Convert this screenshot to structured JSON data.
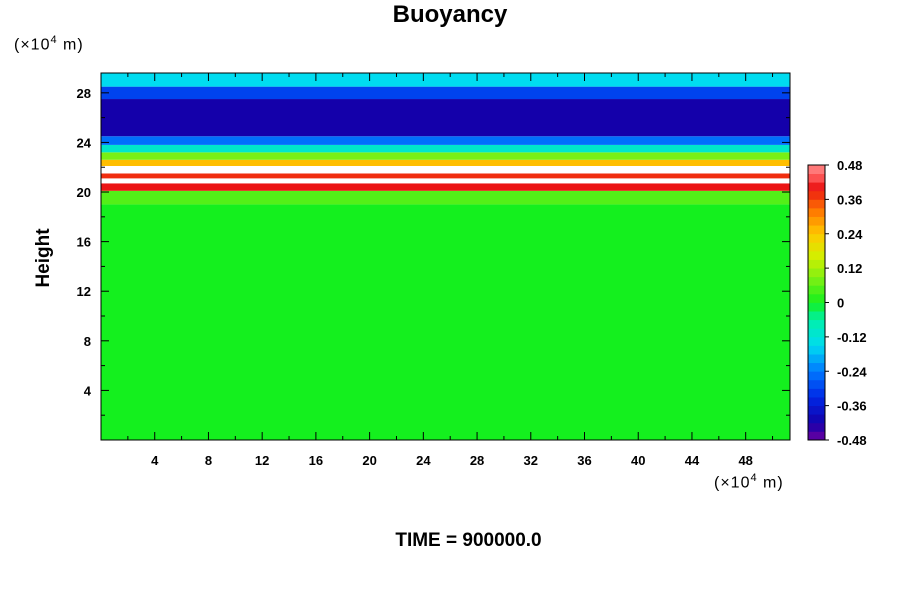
{
  "chart_data": {
    "type": "heatmap",
    "title": "Buoyancy",
    "ylabel": "Height",
    "x_unit": {
      "prefix": "(×10",
      "exp": "4",
      "suffix": " m)"
    },
    "y_unit": {
      "prefix": "(×10",
      "exp": "4",
      "suffix": " m)"
    },
    "xlim": [
      0,
      51.3
    ],
    "ylim": [
      0,
      29.6
    ],
    "x_ticks": [
      4,
      8,
      12,
      16,
      20,
      24,
      28,
      32,
      36,
      40,
      44,
      48
    ],
    "y_ticks": [
      4,
      8,
      12,
      16,
      20,
      24,
      28
    ],
    "colorbar": {
      "range": [
        -0.48,
        0.48
      ],
      "levels": 32,
      "tick_labels": [
        "0.48",
        "0.36",
        "0.24",
        "0.12",
        "0",
        "-0.12",
        "-0.24",
        "-0.36",
        "-0.48"
      ]
    },
    "bands": [
      {
        "y": [
          0,
          19.0
        ],
        "value": 0.0,
        "description_value": "near zero"
      },
      {
        "y": [
          19.0,
          20.1
        ],
        "value": 0.05
      },
      {
        "y": [
          20.1,
          20.7
        ],
        "value": 0.4
      },
      {
        "y": [
          20.7,
          21.1
        ],
        "value": 0.5
      },
      {
        "y": [
          21.1,
          21.5
        ],
        "value": 0.38
      },
      {
        "y": [
          21.5,
          22.1
        ],
        "value": 0.5
      },
      {
        "y": [
          22.1,
          22.6
        ],
        "value": 0.25
      },
      {
        "y": [
          22.6,
          23.2
        ],
        "value": 0.08
      },
      {
        "y": [
          23.2,
          23.8
        ],
        "value": -0.1
      },
      {
        "y": [
          23.8,
          24.5
        ],
        "value": -0.25
      },
      {
        "y": [
          24.5,
          27.5
        ],
        "value": -0.42
      },
      {
        "y": [
          27.5,
          28.5
        ],
        "value": -0.3
      },
      {
        "y": [
          28.5,
          29.6
        ],
        "value": -0.15
      }
    ],
    "x_extent": [
      0,
      51.3
    ],
    "y_extent": [
      0,
      29.6
    ]
  },
  "footer": {
    "time_label": "TIME = 900000.0"
  }
}
